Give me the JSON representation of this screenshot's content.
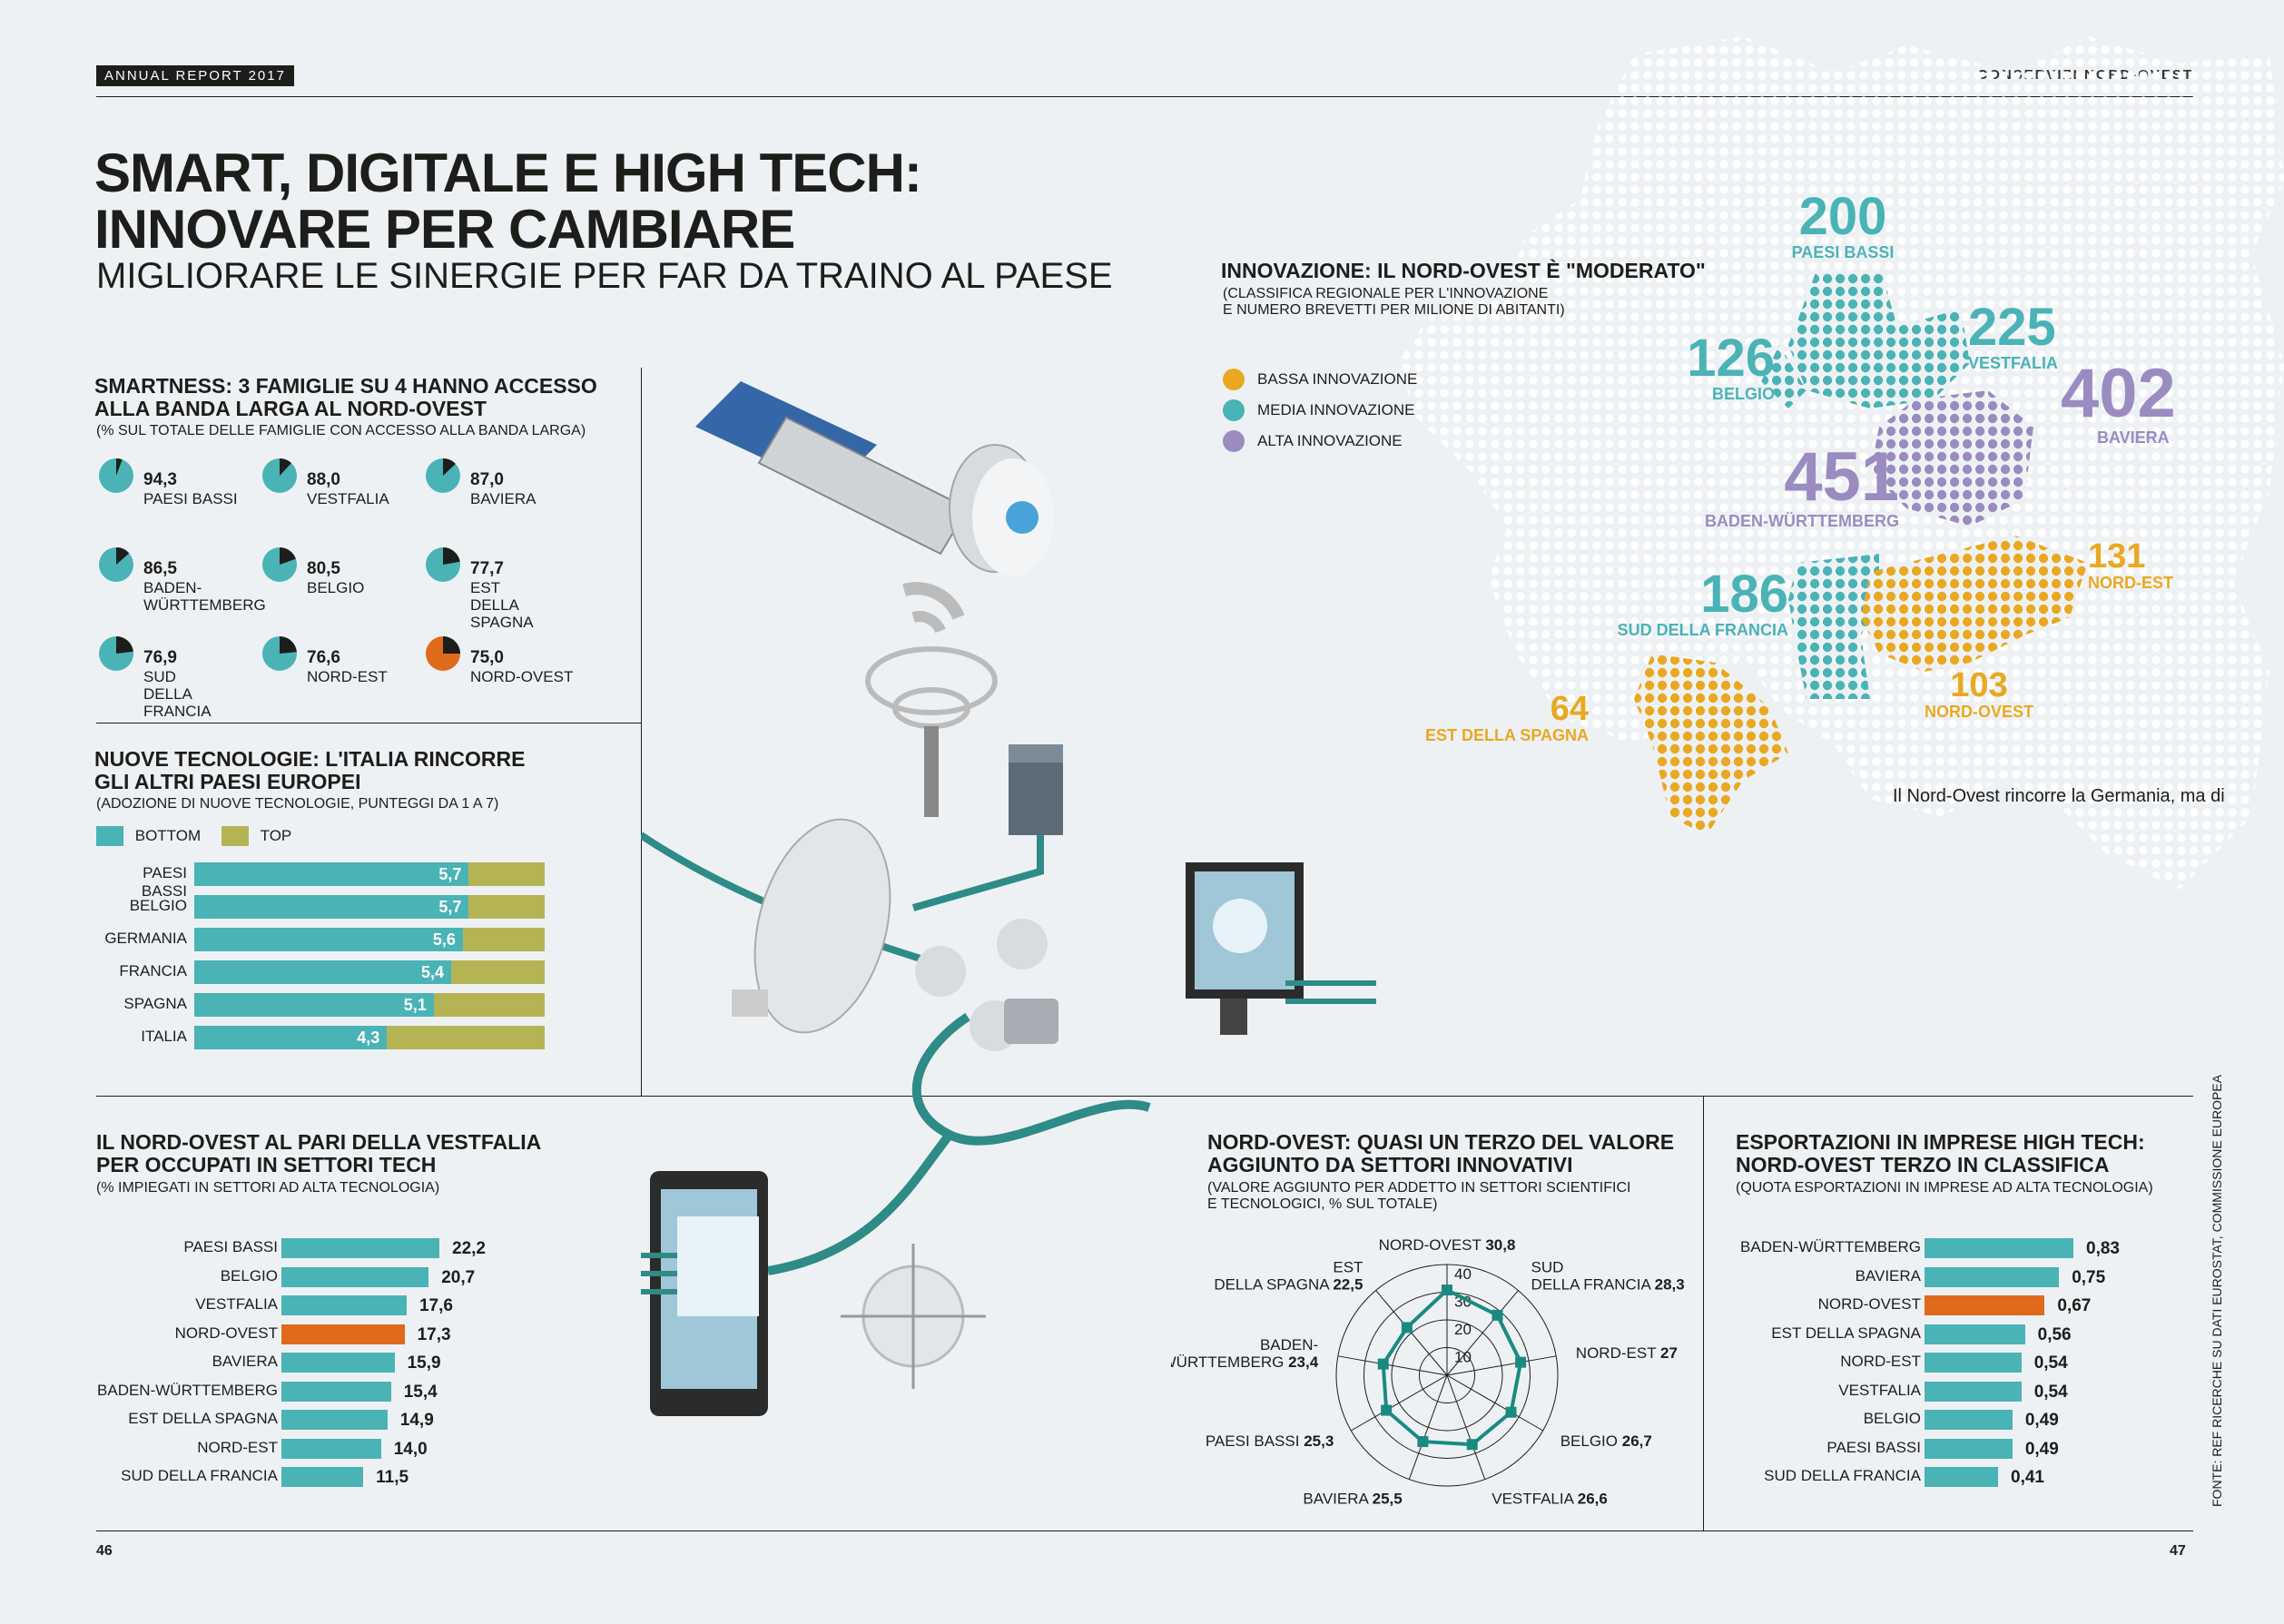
{
  "header": {
    "tag": "ANNUAL REPORT 2017",
    "right": "CONSERVIZI NORD-OVEST"
  },
  "title": {
    "line1": "SMART, DIGITALE E HIGH TECH:",
    "line2": "INNOVARE PER CAMBIARE",
    "subtitle": "MIGLIORARE LE SINERGIE PER FAR DA TRAINO AL PAESE"
  },
  "colors": {
    "teal": "#4ab3b6",
    "orange": "#e06a1b",
    "olive": "#b5b455",
    "yellow": "#e9a821",
    "purple": "#9a8cc0",
    "dark": "#1d1d1b"
  },
  "smartness": {
    "title1": "SMARTNESS: 3 FAMIGLIE SU 4 HANNO ACCESSO",
    "title2": "ALLA BANDA LARGA AL NORD-OVEST",
    "subtitle": "(% SUL TOTALE DELLE FAMIGLIE CON ACCESSO ALLA BANDA LARGA)",
    "items": [
      {
        "value": "94,3",
        "label": [
          "PAESI BASSI"
        ],
        "pct": 94.3,
        "highlight": false
      },
      {
        "value": "88,0",
        "label": [
          "VESTFALIA"
        ],
        "pct": 88.0,
        "highlight": false
      },
      {
        "value": "87,0",
        "label": [
          "BAVIERA"
        ],
        "pct": 87.0,
        "highlight": false
      },
      {
        "value": "86,5",
        "label": [
          "BADEN-",
          "WÜRTTEMBERG"
        ],
        "pct": 86.5,
        "highlight": false
      },
      {
        "value": "80,5",
        "label": [
          "BELGIO"
        ],
        "pct": 80.5,
        "highlight": false
      },
      {
        "value": "77,7",
        "label": [
          "EST",
          "DELLA SPAGNA"
        ],
        "pct": 77.7,
        "highlight": false
      },
      {
        "value": "76,9",
        "label": [
          "SUD",
          "DELLA FRANCIA"
        ],
        "pct": 76.9,
        "highlight": false
      },
      {
        "value": "76,6",
        "label": [
          "NORD-EST"
        ],
        "pct": 76.6,
        "highlight": false
      },
      {
        "value": "75,0",
        "label": [
          "NORD-OVEST"
        ],
        "pct": 75.0,
        "highlight": true
      }
    ]
  },
  "tech": {
    "title1": "NUOVE TECNOLOGIE: L'ITALIA RINCORRE",
    "title2": "GLI ALTRI PAESI EUROPEI",
    "subtitle": "(ADOZIONE DI NUOVE TECNOLOGIE, PUNTEGGI DA 1 A 7)",
    "legend_bottom": "BOTTOM",
    "legend_top": "TOP"
  },
  "employ": {
    "title1": "IL NORD-OVEST AL PARI DELLA VESTFALIA",
    "title2": "PER OCCUPATI IN SETTORI TECH",
    "subtitle": "(% IMPIEGATI IN SETTORI AD ALTA TECNOLOGIA)"
  },
  "radar": {
    "title1": "NORD-OVEST: QUASI UN TERZO DEL VALORE",
    "title2": "AGGIUNTO DA SETTORI INNOVATIVI",
    "subtitle1": "(VALORE AGGIUNTO PER ADDETTO IN SETTORI SCIENTIFICI",
    "subtitle2": "E TECNOLOGICI, % SUL TOTALE)"
  },
  "export": {
    "title1": "ESPORTAZIONI IN IMPRESE HIGH TECH:",
    "title2": "NORD-OVEST TERZO IN CLASSIFICA",
    "subtitle": "(QUOTA ESPORTAZIONI IN IMPRESE AD ALTA TECNOLOGIA)"
  },
  "innovation": {
    "title": "INNOVAZIONE: IL NORD-OVEST È \"MODERATO\"",
    "subtitle1": "(CLASSIFICA REGIONALE PER L'INNOVAZIONE",
    "subtitle2": "E NUMERO BREVETTI PER MILIONE DI ABITANTI)",
    "legend": [
      {
        "label": "BASSA INNOVAZIONE",
        "color": "#e9a821"
      },
      {
        "label": "MEDIA INNOVAZIONE",
        "color": "#4ab3b6"
      },
      {
        "label": "ALTA INNOVAZIONE",
        "color": "#9a8cc0"
      }
    ],
    "regions": [
      {
        "num": "200",
        "label": "PAESI BASSI",
        "color": "#4ab3b6"
      },
      {
        "num": "225",
        "label": "VESTFALIA",
        "color": "#4ab3b6"
      },
      {
        "num": "126",
        "label": "BELGIO",
        "color": "#4ab3b6"
      },
      {
        "num": "402",
        "label": "BAVIERA",
        "color": "#9a8cc0"
      },
      {
        "num": "451",
        "label": "BADEN-WÜRTTEMBERG",
        "color": "#9a8cc0"
      },
      {
        "num": "186",
        "label": "SUD DELLA FRANCIA",
        "color": "#4ab3b6"
      },
      {
        "num": "131",
        "label": "NORD-EST",
        "color": "#e9a821"
      },
      {
        "num": "103",
        "label": "NORD-OVEST",
        "color": "#e9a821"
      },
      {
        "num": "64",
        "label": "EST DELLA SPAGNA",
        "color": "#e9a821"
      }
    ],
    "caption": "Il Nord-Ovest rincorre la Germania, ma di"
  },
  "footer": {
    "page_left": "46",
    "page_right": "47",
    "fonte": "FONTE: REF RICERCHE SU DATI EUROSTAT, COMMISSIONE EUROPEA"
  },
  "chart_data": [
    {
      "type": "bar",
      "title": "NUOVE TECNOLOGIE: L'ITALIA RINCORRE GLI ALTRI PAESI EUROPEI",
      "categories": [
        "PAESI BASSI",
        "BELGIO",
        "GERMANIA",
        "FRANCIA",
        "SPAGNA",
        "ITALIA"
      ],
      "labels": [
        "5,7",
        "5,7",
        "5,6",
        "5,4",
        "5,1",
        "4,3"
      ],
      "series": [
        {
          "name": "BOTTOM",
          "values": [
            5.7,
            5.7,
            5.6,
            5.4,
            5.1,
            4.3
          ]
        },
        {
          "name": "TOP",
          "values": [
            7,
            7,
            7,
            7,
            7,
            7
          ]
        }
      ],
      "xlim": [
        1,
        7
      ]
    },
    {
      "type": "bar",
      "title": "IL NORD-OVEST AL PARI DELLA VESTFALIA PER OCCUPATI IN SETTORI TECH",
      "categories": [
        "PAESI BASSI",
        "BELGIO",
        "VESTFALIA",
        "NORD-OVEST",
        "BAVIERA",
        "BADEN-WÜRTTEMBERG",
        "EST DELLA SPAGNA",
        "NORD-EST",
        "SUD DELLA FRANCIA"
      ],
      "labels": [
        "22,2",
        "20,7",
        "17,6",
        "17,3",
        "15,9",
        "15,4",
        "14,9",
        "14,0",
        "11,5"
      ],
      "values": [
        22.2,
        20.7,
        17.6,
        17.3,
        15.9,
        15.4,
        14.9,
        14.0,
        11.5
      ],
      "highlight": "NORD-OVEST"
    },
    {
      "type": "radar",
      "title": "NORD-OVEST: QUASI UN TERZO DEL VALORE AGGIUNTO DA SETTORI INNOVATIVI",
      "categories": [
        "NORD-OVEST",
        "SUD DELLA FRANCIA",
        "NORD-EST",
        "BELGIO",
        "VESTFALIA",
        "BAVIERA",
        "PAESI BASSI",
        "BADEN-WÜRTTEMBERG",
        "EST DELLA SPAGNA"
      ],
      "labels": [
        "30,8",
        "28,3",
        "27",
        "26,7",
        "26,6",
        "25,5",
        "25,3",
        "23,4",
        "22,5"
      ],
      "values": [
        30.8,
        28.3,
        27,
        26.7,
        26.6,
        25.5,
        25.3,
        23.4,
        22.5
      ],
      "ticks": [
        "10",
        "20",
        "30",
        "40"
      ],
      "rlim": [
        0,
        40
      ]
    },
    {
      "type": "bar",
      "title": "ESPORTAZIONI IN IMPRESE HIGH TECH: NORD-OVEST TERZO IN CLASSIFICA",
      "categories": [
        "BADEN-WÜRTTEMBERG",
        "BAVIERA",
        "NORD-OVEST",
        "EST DELLA SPAGNA",
        "NORD-EST",
        "VESTFALIA",
        "BELGIO",
        "PAESI BASSI",
        "SUD DELLA FRANCIA"
      ],
      "labels": [
        "0,83",
        "0,75",
        "0,67",
        "0,56",
        "0,54",
        "0,54",
        "0,49",
        "0,49",
        "0,41"
      ],
      "values": [
        0.83,
        0.75,
        0.67,
        0.56,
        0.54,
        0.54,
        0.49,
        0.49,
        0.41
      ],
      "highlight": "NORD-OVEST"
    }
  ]
}
